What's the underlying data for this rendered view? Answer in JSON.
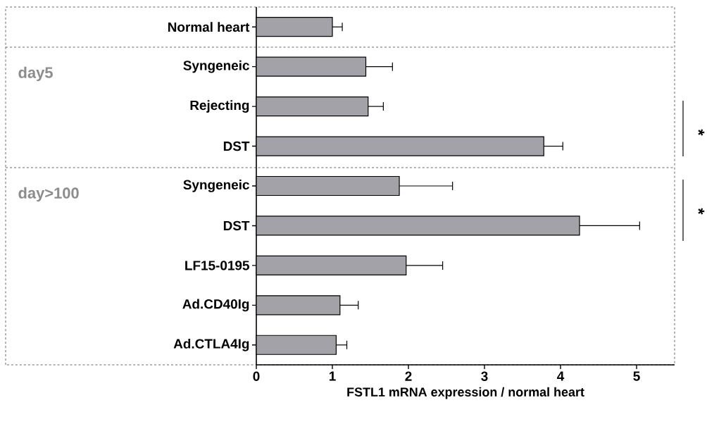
{
  "chart_data": {
    "type": "bar",
    "orientation": "horizontal",
    "categories": [
      "Normal heart",
      "Syngeneic",
      "Rejecting",
      "DST",
      "Syngeneic",
      "DST",
      "LF15-0195",
      "Ad.CD40Ig",
      "Ad.CTLA4Ig"
    ],
    "values": [
      1.0,
      1.44,
      1.47,
      3.78,
      1.88,
      4.25,
      1.97,
      1.1,
      1.05
    ],
    "errors": [
      0.13,
      0.35,
      0.2,
      0.25,
      0.7,
      0.79,
      0.48,
      0.24,
      0.14
    ],
    "color": "#a3a2a8",
    "xlim": [
      0,
      5.5
    ],
    "xticks": [
      0,
      1,
      2,
      3,
      4,
      5
    ],
    "xlabel": "FSTL1 mRNA expression / normal heart",
    "annotations": [
      "day5",
      "day>100",
      "*",
      "*"
    ],
    "grid": false
  }
}
